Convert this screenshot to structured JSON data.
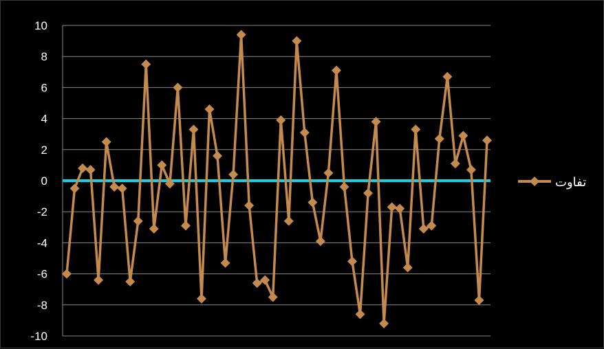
{
  "chart_data": {
    "type": "line",
    "ylim": [
      -10,
      10
    ],
    "yticks": [
      10,
      8,
      6,
      4,
      2,
      0,
      -2,
      -4,
      -6,
      -8,
      -10
    ],
    "grid": true,
    "legend_position": "right",
    "series": [
      {
        "name": "تفاوت",
        "color": "#c58a4e",
        "marker": "diamond",
        "values": [
          -6,
          -0.5,
          0.8,
          0.7,
          -6.4,
          2.5,
          -0.4,
          -0.5,
          -6.5,
          -2.6,
          7.5,
          -3.1,
          1,
          -0.2,
          6,
          -2.9,
          3.3,
          -7.6,
          4.6,
          1.6,
          -5.3,
          0.4,
          9.4,
          -1.6,
          -6.6,
          -6.4,
          -7.5,
          3.9,
          -2.6,
          9,
          3.1,
          -1.4,
          -3.9,
          0.5,
          7.1,
          -0.4,
          -5.2,
          -8.6,
          -0.8,
          3.8,
          -9.2,
          -1.7,
          -1.8,
          -5.6,
          3.3,
          -3.1,
          -2.9,
          2.7,
          6.7,
          1.1,
          2.9,
          0.7,
          -7.7,
          2.6
        ]
      }
    ],
    "reference_line": {
      "value": 0,
      "color": "#14d2e6"
    }
  }
}
